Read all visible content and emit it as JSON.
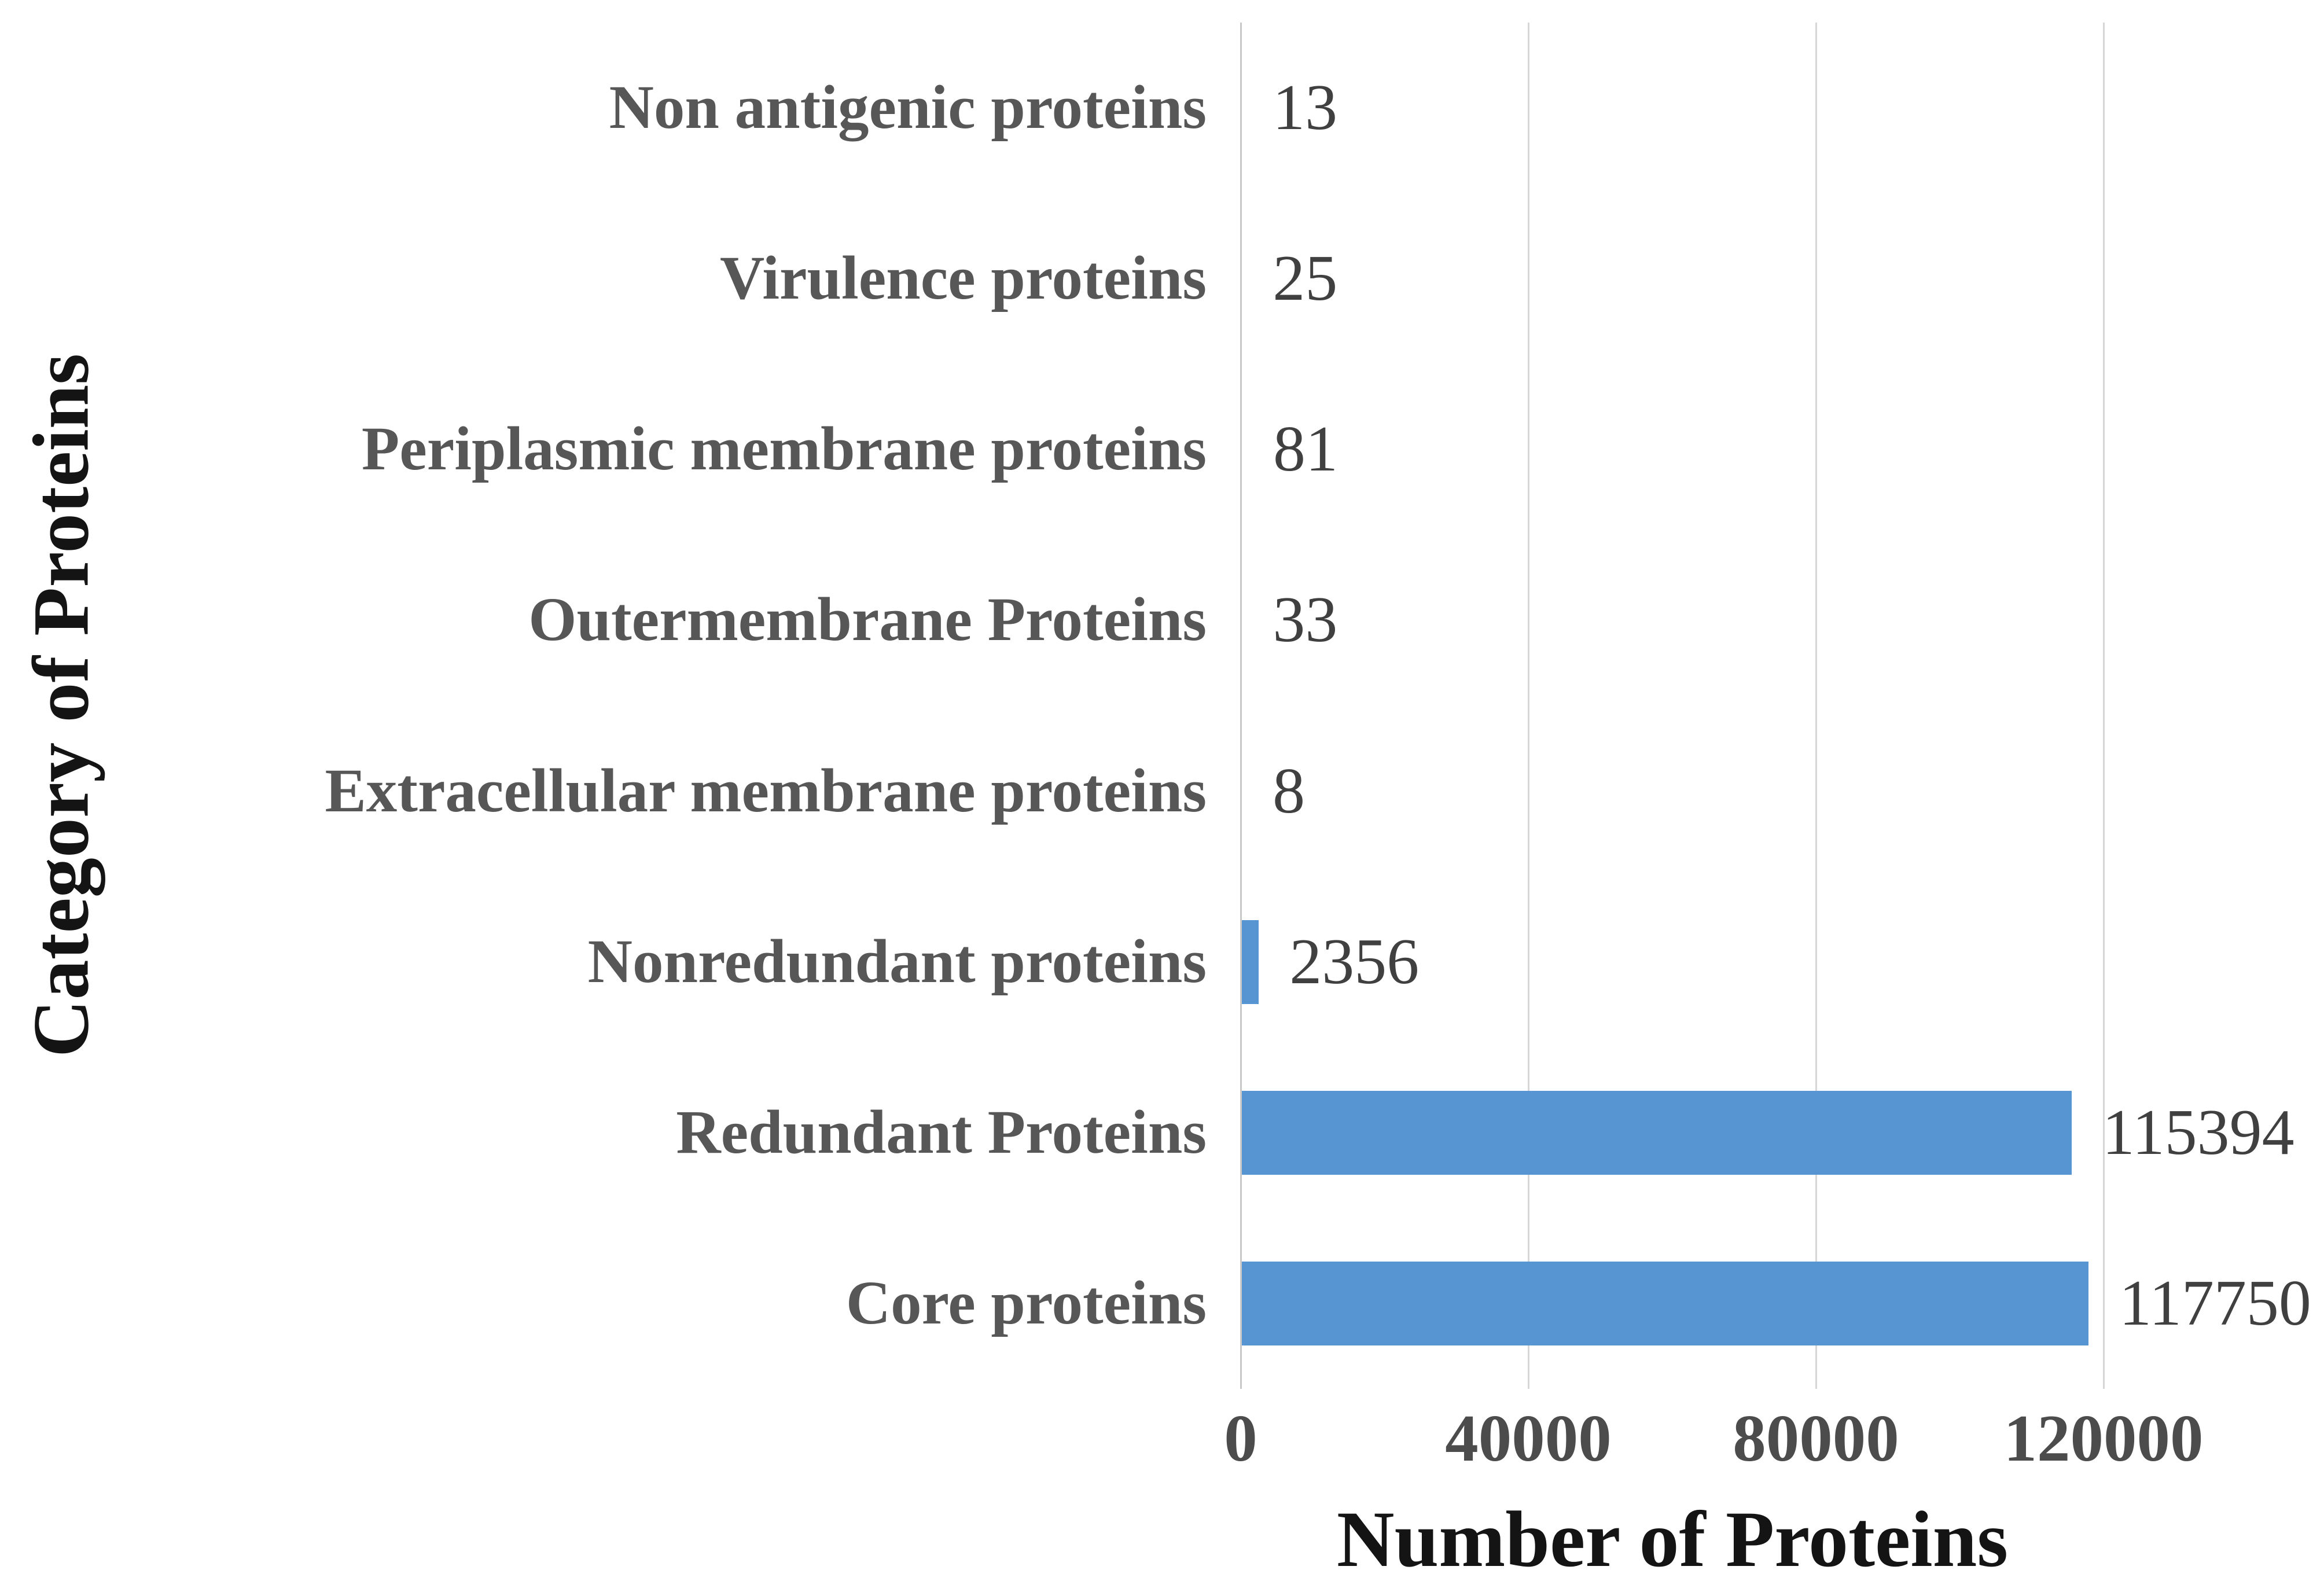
{
  "figure": {
    "background_color": "#ffffff"
  },
  "chart_data": {
    "type": "bar",
    "orientation": "horizontal",
    "title": "",
    "xlabel": "Number of Proteins",
    "ylabel": "Category of Proteins",
    "categories": [
      "Non antigenic proteins",
      "Virulence proteins",
      "Periplasmic membrane proteins",
      "Outermembrane Proteins",
      "Extracellular membrane proteins",
      "Nonredundant proteins",
      "Redundant Proteins",
      "Core proteins"
    ],
    "values": [
      13,
      25,
      81,
      33,
      8,
      2356,
      115394,
      117750
    ],
    "value_labels": [
      "13",
      "25",
      "81",
      "33",
      "8",
      "2356",
      "115394",
      "117750"
    ],
    "x_ticks": [
      0,
      40000,
      80000,
      120000
    ],
    "x_tick_labels": [
      "0",
      "40000",
      "80000",
      "120000"
    ],
    "xlim": [
      0,
      120000
    ],
    "grid": "vertical-gridlines-on",
    "legend": "none",
    "bar_color": "#5694d2",
    "gridline_color": "#d7d7d7",
    "category_label_color": "#575757",
    "value_label_color": "#404040",
    "axis_title_color": "#141414"
  }
}
